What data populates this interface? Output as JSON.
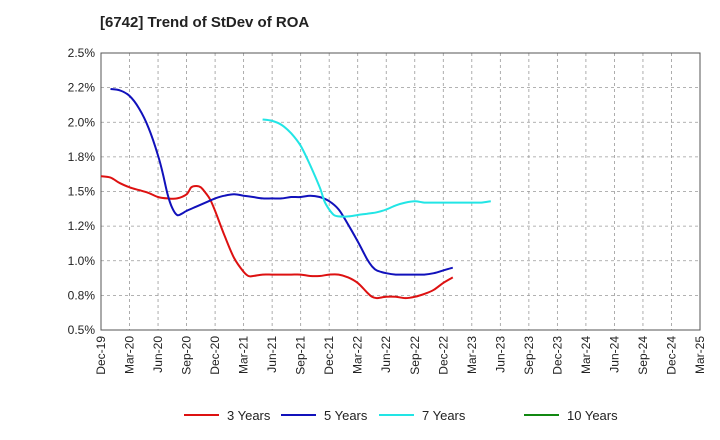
{
  "chart_data": {
    "type": "line",
    "title": "[6742]  Trend of StDev of ROA",
    "xlabel": "",
    "ylabel": "",
    "x_ticks": [
      "Dec-19",
      "Mar-20",
      "Jun-20",
      "Sep-20",
      "Dec-20",
      "Mar-21",
      "Jun-21",
      "Sep-21",
      "Dec-21",
      "Mar-22",
      "Jun-22",
      "Sep-22",
      "Dec-22",
      "Mar-23",
      "Jun-23",
      "Sep-23",
      "Dec-23",
      "Mar-24",
      "Jun-24",
      "Sep-24",
      "Dec-24",
      "Mar-25"
    ],
    "y_ticks": [
      "0.5%",
      "0.8%",
      "1.0%",
      "1.2%",
      "1.5%",
      "1.8%",
      "2.0%",
      "2.2%",
      "2.5%"
    ],
    "ylim": [
      0.5,
      2.5
    ],
    "grid": true,
    "legend_position": "bottom",
    "series": [
      {
        "name": "3 Years",
        "color": "#dd1111",
        "points": [
          [
            0,
            1.61
          ],
          [
            1,
            1.6
          ],
          [
            2,
            1.56
          ],
          [
            3,
            1.53
          ],
          [
            4,
            1.51
          ],
          [
            5,
            1.49
          ],
          [
            6,
            1.46
          ],
          [
            7,
            1.45
          ],
          [
            8,
            1.45
          ],
          [
            9,
            1.48
          ],
          [
            9.5,
            1.53
          ],
          [
            10,
            1.54
          ],
          [
            10.5,
            1.53
          ],
          [
            11,
            1.49
          ],
          [
            11.5,
            1.44
          ],
          [
            12,
            1.36
          ],
          [
            13,
            1.18
          ],
          [
            14,
            1.02
          ],
          [
            15,
            0.92
          ],
          [
            15.5,
            0.89
          ],
          [
            16,
            0.89
          ],
          [
            17,
            0.9
          ],
          [
            18,
            0.9
          ],
          [
            19,
            0.9
          ],
          [
            20,
            0.9
          ],
          [
            21,
            0.9
          ],
          [
            22,
            0.89
          ],
          [
            23,
            0.89
          ],
          [
            24,
            0.9
          ],
          [
            25,
            0.9
          ],
          [
            26,
            0.88
          ],
          [
            27,
            0.84
          ],
          [
            28,
            0.77
          ],
          [
            28.5,
            0.74
          ],
          [
            29,
            0.73
          ],
          [
            30,
            0.74
          ],
          [
            31,
            0.74
          ],
          [
            32,
            0.73
          ],
          [
            33,
            0.74
          ],
          [
            34,
            0.76
          ],
          [
            35,
            0.79
          ],
          [
            36,
            0.84
          ],
          [
            37,
            0.88
          ]
        ]
      },
      {
        "name": "5 Years",
        "color": "#1111bb",
        "points": [
          [
            1,
            2.24
          ],
          [
            2,
            2.23
          ],
          [
            3,
            2.19
          ],
          [
            4,
            2.1
          ],
          [
            5,
            1.96
          ],
          [
            6,
            1.76
          ],
          [
            6.5,
            1.63
          ],
          [
            7,
            1.48
          ],
          [
            7.5,
            1.38
          ],
          [
            8,
            1.33
          ],
          [
            8.5,
            1.34
          ],
          [
            9,
            1.36
          ],
          [
            10,
            1.39
          ],
          [
            11,
            1.42
          ],
          [
            12,
            1.45
          ],
          [
            13,
            1.47
          ],
          [
            14,
            1.48
          ],
          [
            15,
            1.47
          ],
          [
            16,
            1.46
          ],
          [
            17,
            1.45
          ],
          [
            18,
            1.45
          ],
          [
            19,
            1.45
          ],
          [
            20,
            1.46
          ],
          [
            21,
            1.46
          ],
          [
            22,
            1.47
          ],
          [
            23,
            1.46
          ],
          [
            24,
            1.43
          ],
          [
            25,
            1.37
          ],
          [
            26,
            1.26
          ],
          [
            27,
            1.14
          ],
          [
            28,
            1.01
          ],
          [
            28.5,
            0.96
          ],
          [
            29,
            0.93
          ],
          [
            30,
            0.91
          ],
          [
            31,
            0.9
          ],
          [
            32,
            0.9
          ],
          [
            33,
            0.9
          ],
          [
            34,
            0.9
          ],
          [
            35,
            0.91
          ],
          [
            36,
            0.93
          ],
          [
            37,
            0.95
          ]
        ]
      },
      {
        "name": "7 Years",
        "color": "#22e5e5",
        "points": [
          [
            17,
            2.02
          ],
          [
            18,
            2.01
          ],
          [
            19,
            1.98
          ],
          [
            20,
            1.92
          ],
          [
            21,
            1.83
          ],
          [
            22,
            1.69
          ],
          [
            23,
            1.53
          ],
          [
            23.5,
            1.43
          ],
          [
            24,
            1.37
          ],
          [
            24.5,
            1.33
          ],
          [
            25,
            1.32
          ],
          [
            26,
            1.32
          ],
          [
            27,
            1.33
          ],
          [
            28,
            1.34
          ],
          [
            29,
            1.35
          ],
          [
            30,
            1.37
          ],
          [
            31,
            1.4
          ],
          [
            32,
            1.42
          ],
          [
            33,
            1.43
          ],
          [
            34,
            1.42
          ],
          [
            35,
            1.42
          ],
          [
            36,
            1.42
          ],
          [
            37,
            1.42
          ],
          [
            38,
            1.42
          ],
          [
            39,
            1.42
          ],
          [
            40,
            1.42
          ],
          [
            41,
            1.43
          ]
        ]
      },
      {
        "name": "10 Years",
        "color": "#118811",
        "points": []
      }
    ]
  }
}
